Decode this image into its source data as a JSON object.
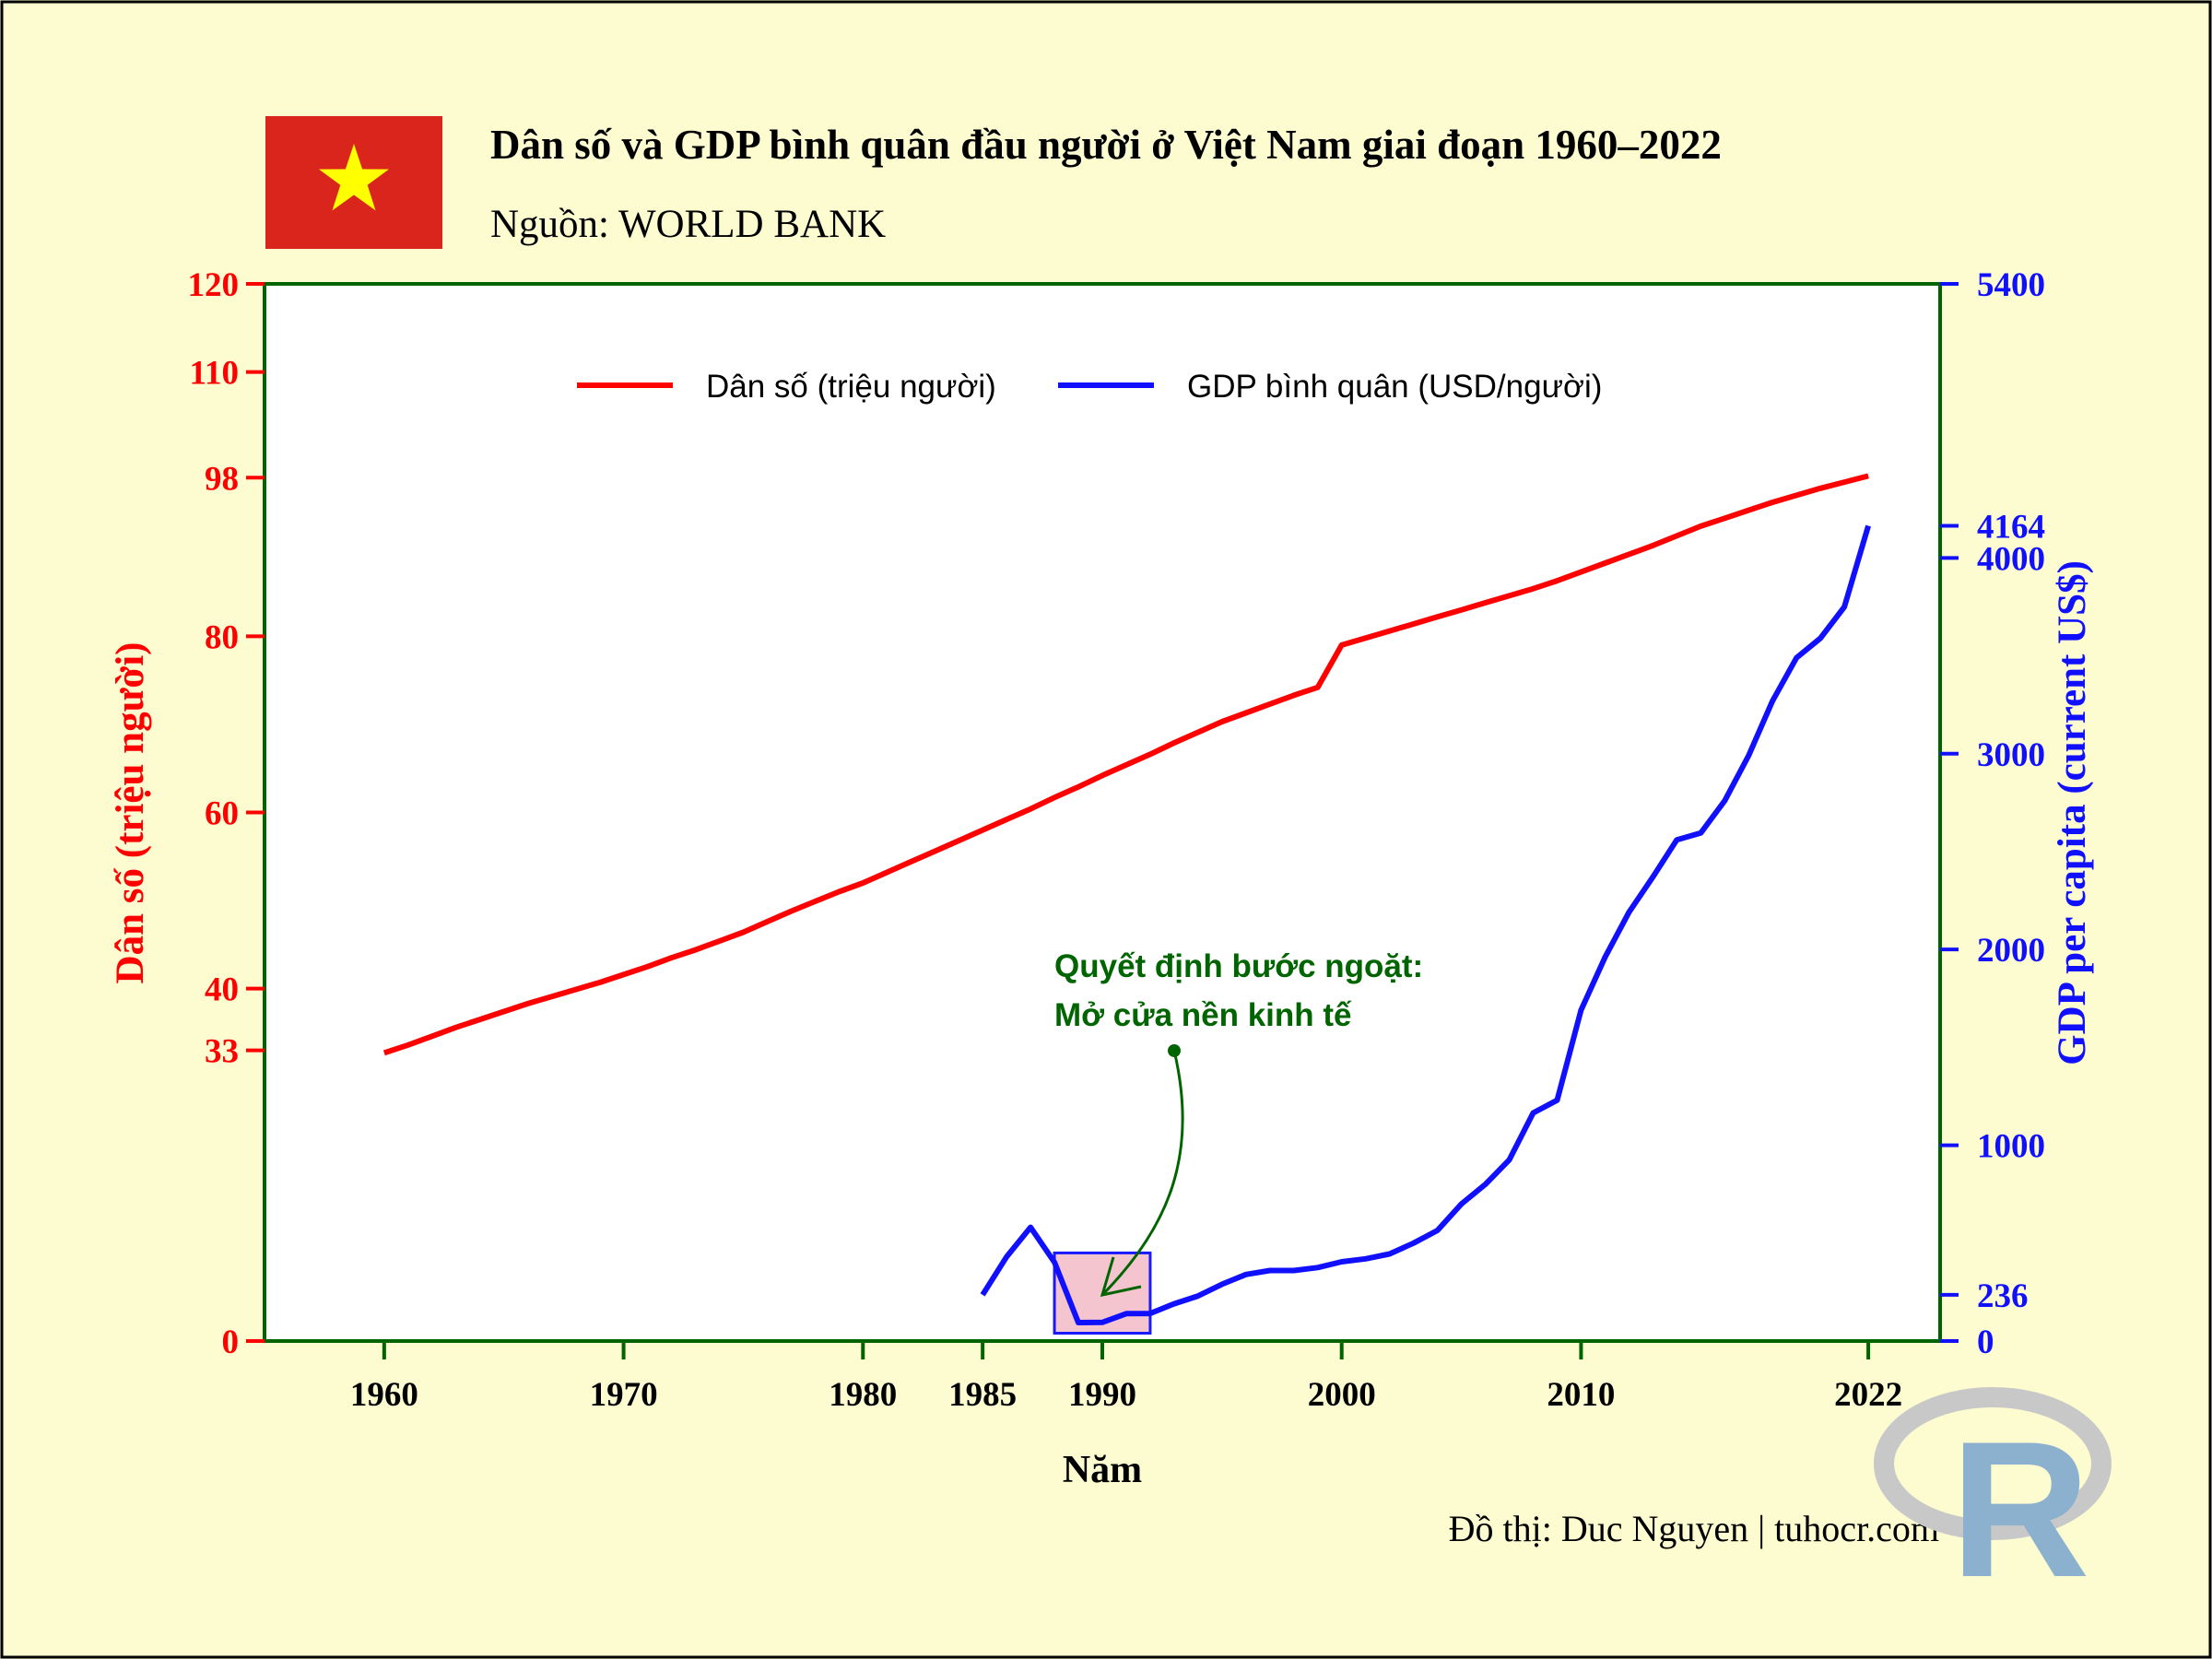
{
  "title": "Dân số và GDP bình quân đầu người ở Việt Nam giai đoạn 1960–2022",
  "subtitle": "Nguồn: WORLD BANK",
  "caption": "Đồ thị: Duc Nguyen | tuhocr.com",
  "logo_text": "R",
  "annotation": {
    "line1": "Quyết định bước ngoặt:",
    "line2": "Mở cửa nền kinh tế"
  },
  "colors": {
    "background": "#fdfbd0",
    "population": "#ff0000",
    "gdp": "#1010ff",
    "axis": "#006400",
    "annotation": "#006400",
    "highlight_fill": "#f4c4cf",
    "flag_red": "#da251d",
    "flag_star": "#ffff00"
  },
  "chart_data": {
    "type": "line",
    "xlabel": "Năm",
    "ylabel_left": "Dân số (triệu người)",
    "ylabel_right": "GDP per capita (current US$)",
    "xlim": [
      1955,
      2025
    ],
    "ylim_left": [
      0,
      120
    ],
    "ylim_right": [
      0,
      5400
    ],
    "x_ticks": [
      1960,
      1970,
      1980,
      1985,
      1990,
      2000,
      2010,
      2022
    ],
    "y_ticks_left": [
      0,
      33,
      40,
      60,
      80,
      98,
      110,
      120
    ],
    "y_ticks_right": [
      0,
      236,
      1000,
      2000,
      3000,
      4000,
      4164,
      5400
    ],
    "grid": false,
    "legend_position": "top",
    "series": [
      {
        "name": "Dân số (triệu người)",
        "axis": "left",
        "x": [
          1960,
          1961,
          1962,
          1963,
          1964,
          1965,
          1966,
          1967,
          1968,
          1969,
          1970,
          1971,
          1972,
          1973,
          1974,
          1975,
          1976,
          1977,
          1978,
          1979,
          1980,
          1981,
          1982,
          1983,
          1984,
          1985,
          1986,
          1987,
          1988,
          1989,
          1990,
          1991,
          1992,
          1993,
          1994,
          1995,
          1996,
          1997,
          1998,
          1999,
          2000,
          2001,
          2002,
          2003,
          2004,
          2005,
          2006,
          2007,
          2008,
          2009,
          2010,
          2011,
          2012,
          2013,
          2014,
          2015,
          2016,
          2017,
          2018,
          2019,
          2020,
          2021,
          2022
        ],
        "values": [
          32.7,
          33.6,
          34.6,
          35.6,
          36.5,
          37.4,
          38.3,
          39.1,
          39.9,
          40.7,
          41.6,
          42.5,
          43.5,
          44.4,
          45.4,
          46.4,
          47.6,
          48.8,
          49.9,
          51.0,
          52.0,
          53.2,
          54.4,
          55.6,
          56.8,
          58.0,
          59.2,
          60.4,
          61.7,
          62.9,
          64.2,
          65.4,
          66.6,
          67.9,
          69.1,
          70.3,
          71.3,
          72.3,
          73.3,
          74.2,
          79.0,
          79.8,
          80.6,
          81.4,
          82.2,
          83.0,
          83.8,
          84.6,
          85.4,
          86.3,
          87.3,
          88.3,
          89.3,
          90.3,
          91.4,
          92.5,
          93.4,
          94.3,
          95.2,
          96.0,
          96.8,
          97.5,
          98.2
        ]
      },
      {
        "name": "GDP bình quân (USD/người)",
        "axis": "right",
        "x": [
          1985,
          1986,
          1987,
          1988,
          1989,
          1990,
          1991,
          1992,
          1993,
          1994,
          1995,
          1996,
          1997,
          1998,
          1999,
          2000,
          2001,
          2002,
          2003,
          2004,
          2005,
          2006,
          2007,
          2008,
          2009,
          2010,
          2011,
          2012,
          2013,
          2014,
          2015,
          2016,
          2017,
          2018,
          2019,
          2020,
          2021,
          2022
        ],
        "values": [
          236,
          430,
          581,
          402,
          94,
          95,
          140,
          141,
          190,
          230,
          290,
          340,
          360,
          360,
          375,
          405,
          420,
          445,
          500,
          565,
          700,
          800,
          925,
          1165,
          1230,
          1690,
          1960,
          2190,
          2370,
          2560,
          2595,
          2760,
          2990,
          3270,
          3490,
          3590,
          3750,
          4164
        ]
      }
    ],
    "highlight": {
      "x_range": [
        1988,
        1992
      ],
      "y_range_right": [
        40,
        450
      ]
    },
    "annotation_point": {
      "x": 1993,
      "y_left": 33
    }
  }
}
